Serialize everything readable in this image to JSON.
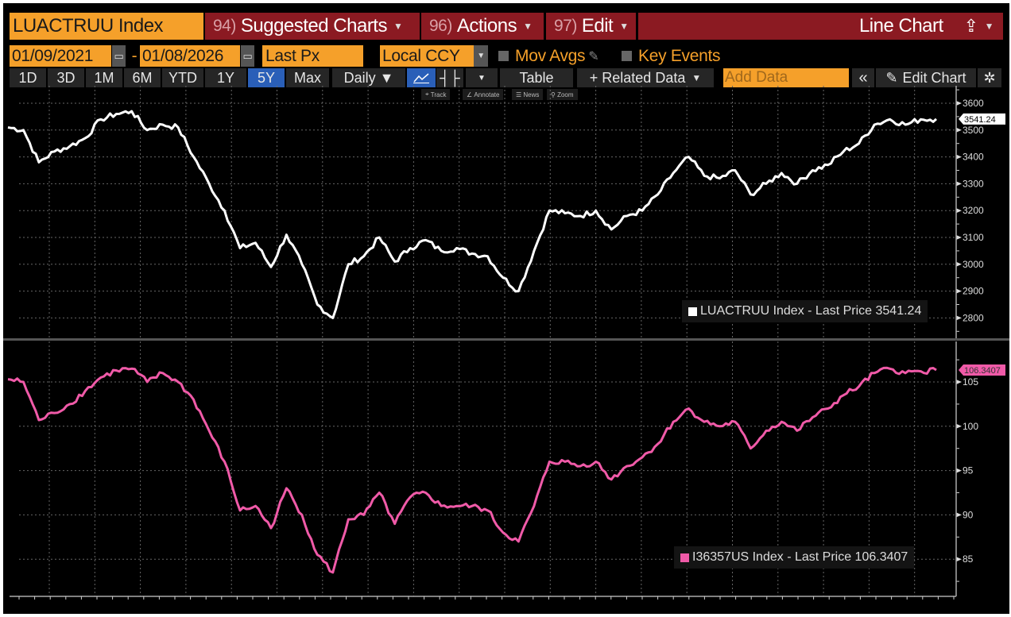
{
  "header": {
    "security": "LUACTRUU Index",
    "menus": [
      {
        "num": "94)",
        "label": "Suggested Charts"
      },
      {
        "num": "96)",
        "label": "Actions"
      },
      {
        "num": "97)",
        "label": "Edit"
      }
    ],
    "chart_type": "Line Chart"
  },
  "controls": {
    "start_date": "01/09/2021",
    "end_date": "01/08/2026",
    "separator": "-",
    "field": "Last Px",
    "currency": "Local CCY",
    "mov_avgs": "Mov Avgs",
    "key_events": "Key Events"
  },
  "toolbar": {
    "periods": [
      "1D",
      "3D",
      "1M",
      "6M",
      "YTD",
      "1Y",
      "5Y",
      "Max"
    ],
    "active_period": "5Y",
    "frequency": "Daily ▼",
    "table": "Table",
    "related_data": "+ Related Data",
    "add_data_placeholder": "Add Data",
    "collapse": "«",
    "edit_chart": "Edit Chart"
  },
  "mini_toolbar": [
    "Track",
    "Annotate",
    "News",
    "Zoom"
  ],
  "colors": {
    "accent_orange": "#f5a02a",
    "header_red": "#8b1a22",
    "active_blue": "#2a5fb8",
    "series1": "#ffffff",
    "series2": "#f05aa8"
  },
  "chart_data": [
    {
      "type": "line",
      "series": [
        {
          "name": "LUACTRUU Index - Last Price 3541.24",
          "color": "#ffffff",
          "last_value": "3541.24",
          "values": [
            3510,
            3500,
            3380,
            3420,
            3440,
            3470,
            3540,
            3560,
            3570,
            3500,
            3520,
            3510,
            3400,
            3300,
            3200,
            3060,
            3080,
            2990,
            3110,
            3000,
            2850,
            2800,
            3000,
            3030,
            3100,
            3010,
            3060,
            3090,
            3050,
            3060,
            3040,
            3030,
            2950,
            2900,
            3050,
            3200,
            3190,
            3180,
            3200,
            3130,
            3180,
            3200,
            3260,
            3340,
            3400,
            3330,
            3320,
            3350,
            3260,
            3300,
            3340,
            3300,
            3350,
            3370,
            3420,
            3450,
            3520,
            3540,
            3520,
            3540,
            3541.24
          ]
        }
      ],
      "yticks": [
        3600,
        3500,
        3400,
        3300,
        3200,
        3100,
        3000,
        2900,
        2800
      ],
      "ylim": [
        2750,
        3650
      ],
      "grid": true,
      "legend": "bottom-right"
    },
    {
      "type": "line",
      "series": [
        {
          "name": "I36357US Index - Last Price 106.3407",
          "color": "#f05aa8",
          "last_value": "106.3407",
          "values": [
            105.3,
            105,
            100.7,
            101.5,
            102.5,
            104,
            105.5,
            106.3,
            106.5,
            105,
            106,
            105,
            103,
            99.5,
            96,
            90.5,
            91,
            88.5,
            93,
            90,
            85.5,
            83.5,
            89.5,
            90,
            92.5,
            89,
            92,
            92.5,
            91,
            91,
            91,
            90.5,
            88,
            87,
            91,
            96,
            96,
            95.5,
            96,
            94,
            95.5,
            96.5,
            98,
            100.5,
            102,
            100.5,
            100,
            100.5,
            97.5,
            99.5,
            100.5,
            99.5,
            101,
            102,
            103.5,
            104.5,
            106,
            106.5,
            106,
            106.2,
            106.3407
          ]
        }
      ],
      "yticks": [
        105,
        100,
        95,
        90,
        85
      ],
      "ylim": [
        81,
        108
      ],
      "grid": true,
      "legend": "bottom-right"
    }
  ],
  "x": {
    "start": "2021-01",
    "end": "2026-01",
    "frequency": "monthly"
  }
}
